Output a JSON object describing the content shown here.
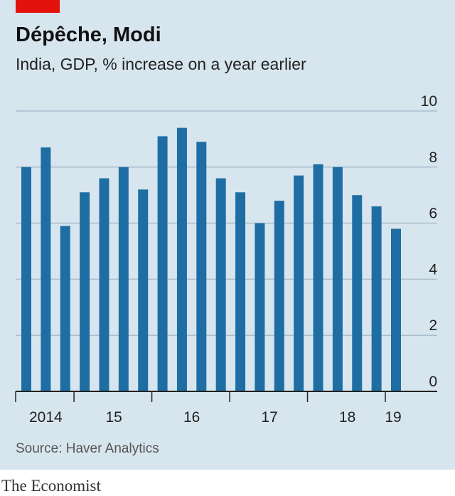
{
  "chart_data": {
    "type": "bar",
    "title": "Dépêche, Modi",
    "subtitle": "India, GDP, % increase on a year earlier",
    "source": "Source: Haver Analytics",
    "brand": "The Economist",
    "categories": [
      "2014",
      null,
      null,
      "15",
      null,
      null,
      null,
      "16",
      null,
      null,
      null,
      "17",
      null,
      null,
      null,
      "18",
      null,
      null,
      null,
      "19"
    ],
    "values": [
      8.0,
      8.7,
      5.9,
      7.1,
      7.6,
      8.0,
      7.2,
      9.1,
      9.4,
      8.9,
      7.6,
      7.1,
      6.0,
      6.8,
      7.7,
      8.1,
      8.0,
      7.0,
      6.6,
      5.8
    ],
    "color": "#1f6ea3",
    "ylim": [
      0,
      10
    ],
    "yticks": [
      0,
      2,
      4,
      6,
      8,
      10
    ],
    "grid": true
  }
}
